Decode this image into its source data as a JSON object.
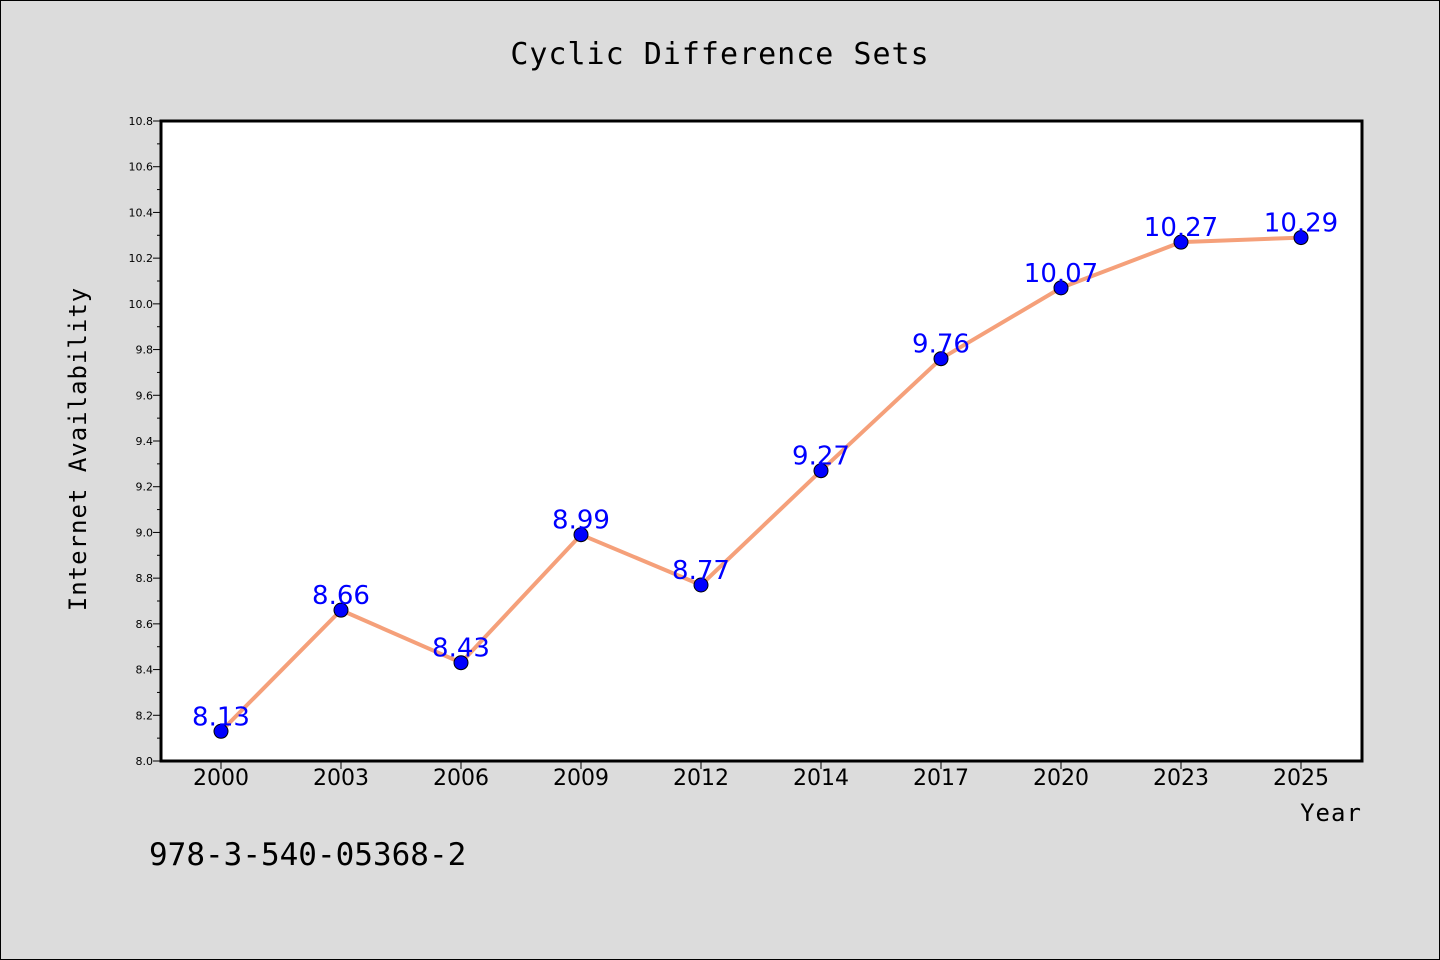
{
  "chart_data": {
    "type": "line",
    "title": "Cyclic Difference Sets",
    "xlabel": "Year",
    "ylabel": "Internet Availability",
    "categories": [
      "2000",
      "2003",
      "2006",
      "2009",
      "2012",
      "2014",
      "2017",
      "2020",
      "2023",
      "2025"
    ],
    "series": [
      {
        "values": [
          8.13,
          8.66,
          8.43,
          8.99,
          8.77,
          9.27,
          9.76,
          10.07,
          10.27,
          10.29
        ],
        "data_labels": [
          "8.13",
          "8.66",
          "8.43",
          "8.99",
          "8.77",
          "9.27",
          "9.76",
          "10.07",
          "10.27",
          "10.29"
        ],
        "line_color": "#f5a07a",
        "marker_color": "#0000ff"
      }
    ],
    "ylim": [
      8.0,
      10.8
    ],
    "yticks": [
      "8.0",
      "8.2",
      "8.4",
      "8.6",
      "8.8",
      "9.0",
      "9.2",
      "9.4",
      "9.6",
      "9.8",
      "10.0",
      "10.2",
      "10.4",
      "10.6",
      "10.8"
    ],
    "grid": false,
    "legend": "none",
    "background_color": "#dcdcdc",
    "plot_background_color": "#ffffff",
    "label_color": "#0000ff"
  },
  "footnote": "978-3-540-05368-2"
}
